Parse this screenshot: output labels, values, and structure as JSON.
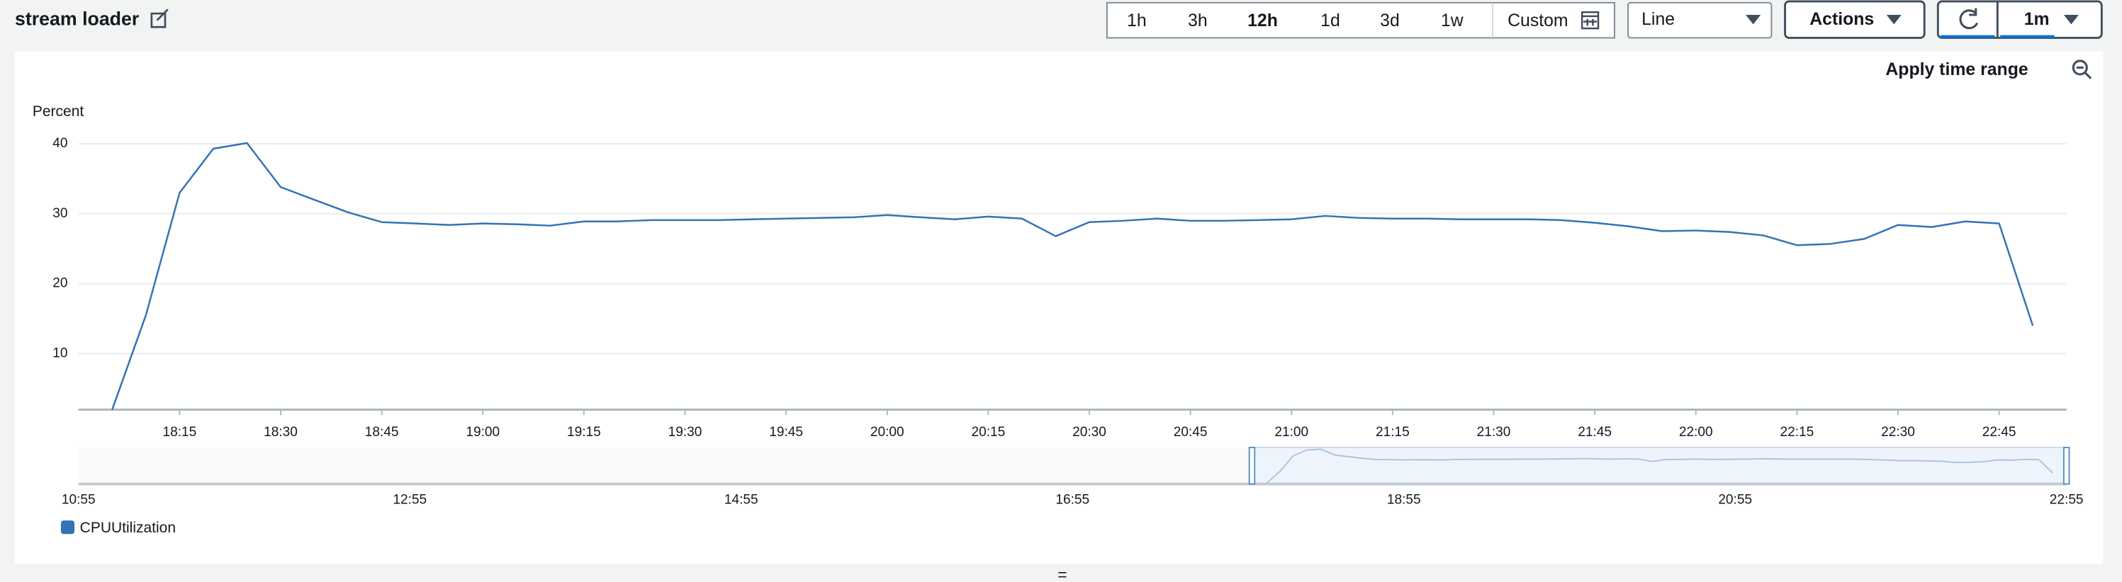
{
  "header": {
    "title": "stream loader"
  },
  "toolbar": {
    "time_ranges": [
      "1h",
      "3h",
      "12h",
      "1d",
      "3d",
      "1w"
    ],
    "custom": "Custom",
    "view": "Line",
    "actions": "Actions",
    "period": "1m"
  },
  "apply_time_range": "Apply time range",
  "chart_data": {
    "type": "line",
    "y_label": "Percent",
    "x": [
      "18:05",
      "18:10",
      "18:15",
      "18:20",
      "18:25",
      "18:30",
      "18:35",
      "18:40",
      "18:45",
      "18:50",
      "18:55",
      "19:00",
      "19:05",
      "19:10",
      "19:15",
      "19:20",
      "19:25",
      "19:30",
      "19:35",
      "19:40",
      "19:45",
      "19:50",
      "19:55",
      "20:00",
      "20:05",
      "20:10",
      "20:15",
      "20:20",
      "20:25",
      "20:30",
      "20:35",
      "20:40",
      "20:45",
      "20:50",
      "20:55",
      "21:00",
      "21:05",
      "21:10",
      "21:15",
      "21:20",
      "21:25",
      "21:30",
      "21:35",
      "21:40",
      "21:45",
      "21:50",
      "21:55",
      "22:00",
      "22:05",
      "22:10",
      "22:15",
      "22:20",
      "22:25",
      "22:30",
      "22:35",
      "22:40",
      "22:45",
      "22:50"
    ],
    "series": [
      {
        "name": "CPUUtilization",
        "color": "#3274b5",
        "values": [
          2.0,
          15.5,
          33.0,
          39.3,
          40.1,
          33.8,
          32.0,
          30.2,
          28.8,
          28.6,
          28.4,
          28.6,
          28.5,
          28.3,
          28.9,
          28.9,
          29.1,
          29.1,
          29.1,
          29.2,
          29.3,
          29.4,
          29.5,
          29.8,
          29.5,
          29.2,
          29.6,
          29.3,
          26.8,
          28.8,
          29.0,
          29.3,
          29.0,
          29.0,
          29.1,
          29.2,
          29.7,
          29.4,
          29.3,
          29.3,
          29.2,
          29.2,
          29.2,
          29.1,
          28.7,
          28.2,
          27.5,
          27.6,
          27.4,
          26.9,
          25.5,
          25.7,
          26.4,
          28.4,
          28.1,
          28.9,
          28.6,
          14.0
        ]
      }
    ],
    "xlim": [
      "18:00",
      "22:55"
    ],
    "xticks": [
      "18:15",
      "18:30",
      "18:45",
      "19:00",
      "19:15",
      "19:30",
      "19:45",
      "20:00",
      "20:15",
      "20:30",
      "20:45",
      "21:00",
      "21:15",
      "21:30",
      "21:45",
      "22:00",
      "22:15",
      "22:30",
      "22:45"
    ],
    "ylim": [
      2,
      42
    ],
    "yticks": [
      10,
      20,
      30,
      40
    ],
    "grid": true,
    "legend": "bottom-left",
    "navigator": {
      "xlim": [
        "10:55",
        "22:55"
      ],
      "xticks": [
        "10:55",
        "12:55",
        "14:55",
        "16:55",
        "18:55",
        "20:55",
        "22:55"
      ]
    }
  }
}
